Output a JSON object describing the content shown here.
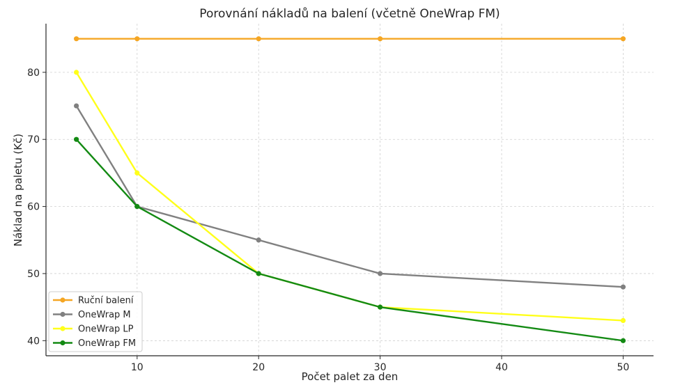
{
  "chart_data": {
    "type": "line",
    "title": "Porovnání nákladů na balení (včetně OneWrap FM)",
    "xlabel": "Počet palet za den",
    "ylabel": "Náklad na paletu (Kč)",
    "x": [
      5,
      10,
      20,
      30,
      50
    ],
    "xticks": [
      10,
      20,
      30,
      40,
      50
    ],
    "yticks": [
      40,
      50,
      60,
      70,
      80
    ],
    "xlim": [
      2.5,
      52.5
    ],
    "ylim": [
      37.75,
      87.25
    ],
    "grid": true,
    "legend_position": "bottom-left",
    "series": [
      {
        "name": "Ruční balení",
        "color": "#f5a623",
        "values": [
          85,
          85,
          85,
          85,
          85
        ]
      },
      {
        "name": "OneWrap M",
        "color": "#808080",
        "values": [
          75,
          60,
          55,
          50,
          48
        ]
      },
      {
        "name": "OneWrap LP",
        "color": "#ffff1a",
        "values": [
          80,
          65,
          50,
          45,
          43
        ]
      },
      {
        "name": "OneWrap FM",
        "color": "#138a13",
        "values": [
          70,
          60,
          50,
          45,
          40
        ]
      }
    ]
  }
}
